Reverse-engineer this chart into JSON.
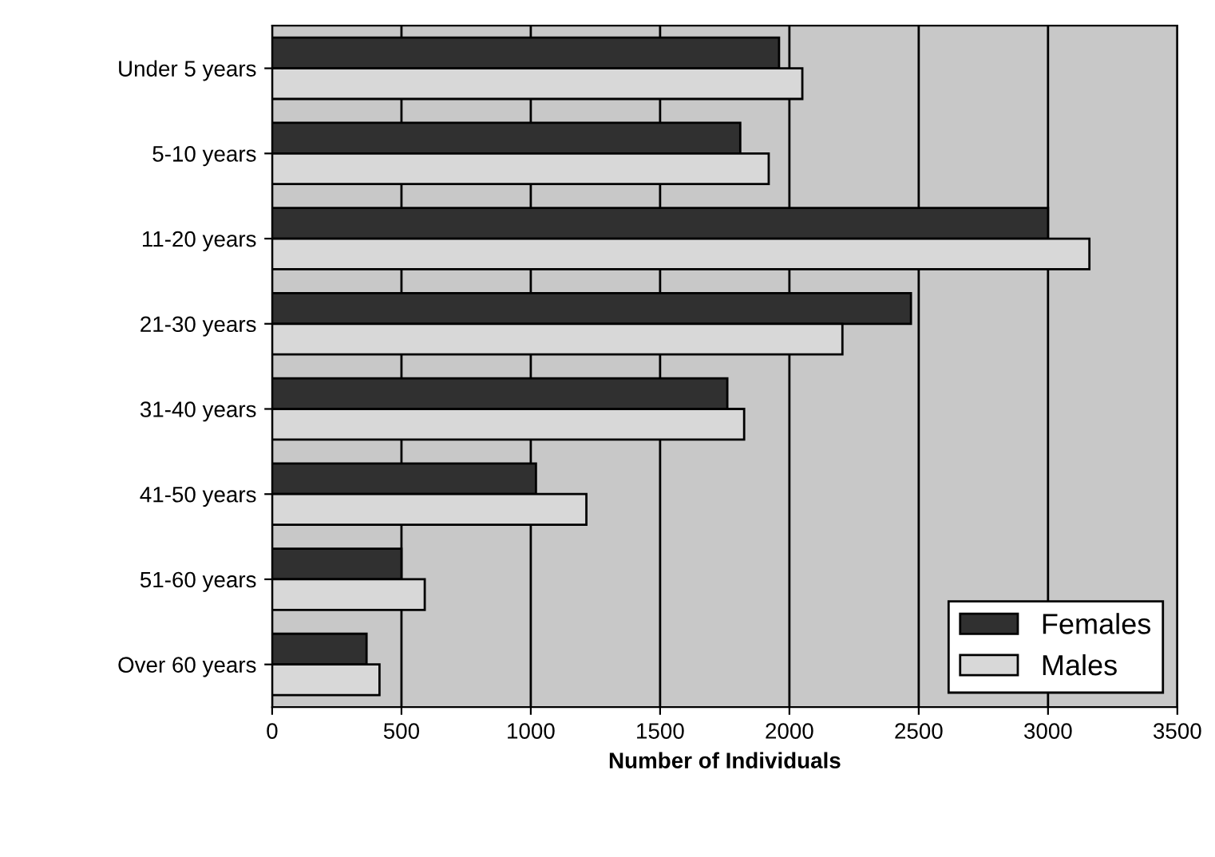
{
  "chart_data": {
    "type": "bar",
    "orientation": "horizontal",
    "xlabel": "Number of Individuals",
    "categories": [
      "Under 5 years",
      "5-10 years",
      "11-20 years",
      "21-30 years",
      "31-40 years",
      "41-50 years",
      "51-60 years",
      "Over 60 years"
    ],
    "series": [
      {
        "name": "Females",
        "color": "#303030",
        "values": [
          1960,
          1810,
          3000,
          2470,
          1760,
          1020,
          500,
          365
        ]
      },
      {
        "name": "Males",
        "color": "#d8d8d8",
        "values": [
          2050,
          1920,
          3160,
          2205,
          1825,
          1215,
          590,
          415
        ]
      }
    ],
    "xlim": [
      0,
      3500
    ],
    "xticks": [
      0,
      500,
      1000,
      1500,
      2000,
      2500,
      3000,
      3500
    ],
    "grid": "x",
    "legend": "bottom right"
  }
}
